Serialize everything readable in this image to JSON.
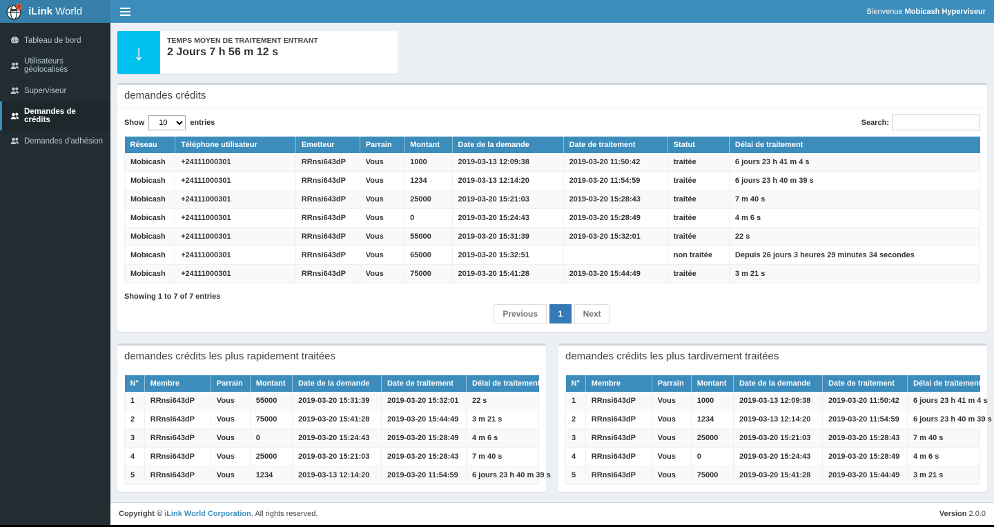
{
  "app": {
    "brand_bold": "iLink",
    "brand_light": " World",
    "welcome_prefix": "Bienvenue ",
    "welcome_user": "Mobicash Hyperviseur"
  },
  "colors": {
    "navbar": "#3c8dbc",
    "logo_bg": "#367fa9",
    "sidebar_bg": "#222d32",
    "sidebar_active_bg": "#1e282c",
    "stat_icon_bg": "#00c0ef",
    "table_header_bg": "#3c8dbc",
    "pagination_active": "#337ab7"
  },
  "sidebar": {
    "items": [
      {
        "label": "Tableau de bord",
        "icon": "dashboard-icon",
        "active": false
      },
      {
        "label": "Utilisateurs géolocalisés",
        "icon": "users-icon",
        "active": false
      },
      {
        "label": "Superviseur",
        "icon": "users-icon",
        "active": false
      },
      {
        "label": "Demandes de crédits",
        "icon": "users-icon",
        "active": true
      },
      {
        "label": "Demandes d'adhésion",
        "icon": "users-icon",
        "active": false
      }
    ]
  },
  "stat_card": {
    "icon_glyph": "↓",
    "title": "TEMPS MOYEN DE TRAITEMENT ENTRANT",
    "value": "2 Jours 7 h 56 m 12 s"
  },
  "credits_panel": {
    "title": "demandes crédits",
    "show_label": "Show",
    "page_length": "10",
    "entries_label": "entries",
    "search_label": "Search:",
    "columns": [
      "Réseau",
      "Téléphone utilisateur",
      "Emetteur",
      "Parrain",
      "Montant",
      "Date de la demande",
      "Date de traitement",
      "Statut",
      "Délai de traitement"
    ],
    "rows": [
      [
        "Mobicash",
        "+24111000301",
        "RRnsi643dP",
        "Vous",
        "1000",
        "2019-03-13 12:09:38",
        "2019-03-20 11:50:42",
        "traitée",
        "6 jours 23 h 41 m 4 s"
      ],
      [
        "Mobicash",
        "+24111000301",
        "RRnsi643dP",
        "Vous",
        "1234",
        "2019-03-13 12:14:20",
        "2019-03-20 11:54:59",
        "traitée",
        "6 jours 23 h 40 m 39 s"
      ],
      [
        "Mobicash",
        "+24111000301",
        "RRnsi643dP",
        "Vous",
        "25000",
        "2019-03-20 15:21:03",
        "2019-03-20 15:28:43",
        "traitée",
        "7 m 40 s"
      ],
      [
        "Mobicash",
        "+24111000301",
        "RRnsi643dP",
        "Vous",
        "0",
        "2019-03-20 15:24:43",
        "2019-03-20 15:28:49",
        "traitée",
        "4 m 6 s"
      ],
      [
        "Mobicash",
        "+24111000301",
        "RRnsi643dP",
        "Vous",
        "55000",
        "2019-03-20 15:31:39",
        "2019-03-20 15:32:01",
        "traitée",
        "22 s"
      ],
      [
        "Mobicash",
        "+24111000301",
        "RRnsi643dP",
        "Vous",
        "65000",
        "2019-03-20 15:32:51",
        "",
        "non traitée",
        "Depuis 26 jours 3 heures 29 minutes 34 secondes"
      ],
      [
        "Mobicash",
        "+24111000301",
        "RRnsi643dP",
        "Vous",
        "75000",
        "2019-03-20 15:41:28",
        "2019-03-20 15:44:49",
        "traitée",
        "3 m 21 s"
      ]
    ],
    "info": "Showing 1 to 7 of 7 entries",
    "pagination": {
      "previous": "Previous",
      "page": "1",
      "next": "Next"
    }
  },
  "fastest_panel": {
    "title": "demandes crédits les plus rapidement traitées",
    "columns": [
      "N°",
      "Membre",
      "Parrain",
      "Montant",
      "Date de la demande",
      "Date de traitement",
      "Délai de traitement"
    ],
    "rows": [
      [
        "1",
        "RRnsi643dP",
        "Vous",
        "55000",
        "2019-03-20 15:31:39",
        "2019-03-20 15:32:01",
        "22 s"
      ],
      [
        "2",
        "RRnsi643dP",
        "Vous",
        "75000",
        "2019-03-20 15:41:28",
        "2019-03-20 15:44:49",
        "3 m 21 s"
      ],
      [
        "3",
        "RRnsi643dP",
        "Vous",
        "0",
        "2019-03-20 15:24:43",
        "2019-03-20 15:28:49",
        "4 m 6 s"
      ],
      [
        "4",
        "RRnsi643dP",
        "Vous",
        "25000",
        "2019-03-20 15:21:03",
        "2019-03-20 15:28:43",
        "7 m 40 s"
      ],
      [
        "5",
        "RRnsi643dP",
        "Vous",
        "1234",
        "2019-03-13 12:14:20",
        "2019-03-20 11:54:59",
        "6 jours 23 h 40 m 39 s"
      ]
    ]
  },
  "slowest_panel": {
    "title": "demandes crédits les plus tardivement traitées",
    "columns": [
      "N°",
      "Membre",
      "Parrain",
      "Montant",
      "Date de la demande",
      "Date de traitement",
      "Délai de traitement"
    ],
    "rows": [
      [
        "1",
        "RRnsi643dP",
        "Vous",
        "1000",
        "2019-03-13 12:09:38",
        "2019-03-20 11:50:42",
        "6 jours 23 h 41 m 4 s"
      ],
      [
        "2",
        "RRnsi643dP",
        "Vous",
        "1234",
        "2019-03-13 12:14:20",
        "2019-03-20 11:54:59",
        "6 jours 23 h 40 m 39 s"
      ],
      [
        "3",
        "RRnsi643dP",
        "Vous",
        "25000",
        "2019-03-20 15:21:03",
        "2019-03-20 15:28:43",
        "7 m 40 s"
      ],
      [
        "4",
        "RRnsi643dP",
        "Vous",
        "0",
        "2019-03-20 15:24:43",
        "2019-03-20 15:28:49",
        "4 m 6 s"
      ],
      [
        "5",
        "RRnsi643dP",
        "Vous",
        "75000",
        "2019-03-20 15:41:28",
        "2019-03-20 15:44:49",
        "3 m 21 s"
      ]
    ]
  },
  "footer": {
    "copyright": "Copyright © ",
    "link": "iLink World Corporation",
    "rights": ". All rights reserved.",
    "version_label": "Version ",
    "version": "2.0.0"
  }
}
